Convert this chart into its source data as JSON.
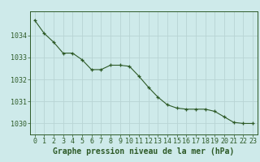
{
  "x": [
    0,
    1,
    2,
    3,
    4,
    5,
    6,
    7,
    8,
    9,
    10,
    11,
    12,
    13,
    14,
    15,
    16,
    17,
    18,
    19,
    20,
    21,
    22,
    23
  ],
  "y": [
    1034.7,
    1034.1,
    1033.7,
    1033.2,
    1033.2,
    1032.9,
    1032.45,
    1032.45,
    1032.65,
    1032.65,
    1032.6,
    1032.15,
    1031.65,
    1031.2,
    1030.85,
    1030.7,
    1030.65,
    1030.65,
    1030.65,
    1030.55,
    1030.3,
    1030.05,
    1030.0,
    1030.0
  ],
  "line_color": "#2d5a27",
  "marker": "+",
  "marker_size": 3,
  "bg_color": "#ceeaea",
  "grid_color": "#b8d4d4",
  "axis_color": "#2d5a27",
  "xlabel": "Graphe pression niveau de la mer (hPa)",
  "xlabel_fontsize": 7,
  "tick_fontsize": 6,
  "ylim": [
    1029.5,
    1035.1
  ],
  "yticks": [
    1030,
    1031,
    1032,
    1033,
    1034
  ],
  "xlim": [
    -0.5,
    23.5
  ],
  "xticks": [
    0,
    1,
    2,
    3,
    4,
    5,
    6,
    7,
    8,
    9,
    10,
    11,
    12,
    13,
    14,
    15,
    16,
    17,
    18,
    19,
    20,
    21,
    22,
    23
  ]
}
